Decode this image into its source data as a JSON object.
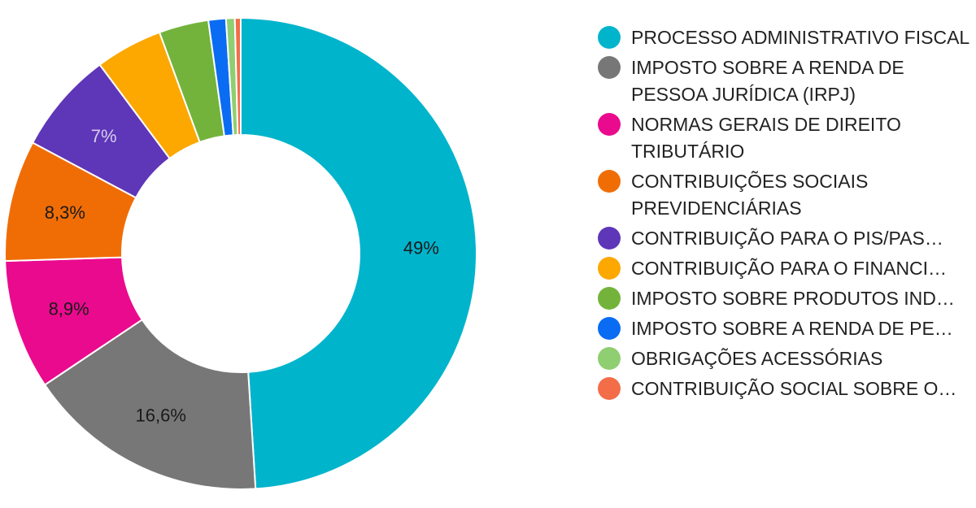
{
  "chart_data": {
    "type": "pie",
    "title": "",
    "legend_position": "right",
    "slices": [
      {
        "label": "PROCESSO ADMINISTRATIVO FISCAL",
        "value": 49.0,
        "display": "49%",
        "color": "#00b4cc"
      },
      {
        "label": "IMPOSTO SOBRE A RENDA DE PESSOA JURÍDICA (IRPJ)",
        "value": 16.6,
        "display": "16,6%",
        "color": "#777777"
      },
      {
        "label": "NORMAS GERAIS DE DIREITO TRIBUTÁRIO",
        "value": 8.9,
        "display": "8,9%",
        "color": "#ea0a8e"
      },
      {
        "label": "CONTRIBUIÇÕES SOCIAIS PREVIDENCIÁRIAS",
        "value": 8.3,
        "display": "8,3%",
        "color": "#f06d06"
      },
      {
        "label": "CONTRIBUIÇÃO PARA O PIS/PAS…",
        "value": 7.0,
        "display": "7%",
        "color": "#5e36b8"
      },
      {
        "label": "CONTRIBUIÇÃO PARA O FINANCI…",
        "value": 4.6,
        "display": "",
        "color": "#fca800"
      },
      {
        "label": "IMPOSTO SOBRE PRODUTOS IND…",
        "value": 3.4,
        "display": "",
        "color": "#73b33b"
      },
      {
        "label": "IMPOSTO SOBRE A RENDA DE PE…",
        "value": 1.2,
        "display": "",
        "color": "#0a6cf2"
      },
      {
        "label": "OBRIGAÇÕES ACESSÓRIAS",
        "value": 0.6,
        "display": "",
        "color": "#8fce71"
      },
      {
        "label": "CONTRIBUIÇÃO SOCIAL SOBRE O…",
        "value": 0.4,
        "display": "",
        "color": "#f36d48"
      }
    ],
    "label_colors": {
      "dark": "#1a1a1a",
      "light": "#d7cdf0"
    }
  }
}
